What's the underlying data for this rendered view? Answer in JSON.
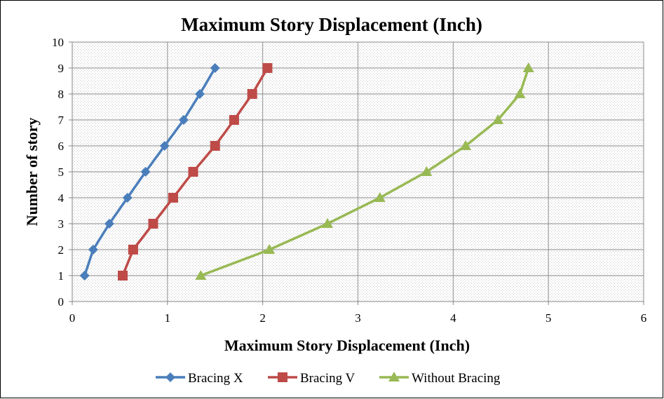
{
  "chart_data": {
    "type": "line",
    "title": "Maximum Story Displacement (Inch)",
    "xlabel": "Maximum Story Displacement (Inch)",
    "ylabel": "Number of story",
    "xlim": [
      0,
      6
    ],
    "ylim": [
      0,
      10
    ],
    "xticks": [
      "0",
      "1",
      "2",
      "3",
      "4",
      "5",
      "6"
    ],
    "yticks": [
      "0",
      "1",
      "2",
      "3",
      "4",
      "5",
      "6",
      "7",
      "8",
      "9",
      "10"
    ],
    "grid": true,
    "legend_position": "bottom",
    "series": [
      {
        "name": "Bracing X",
        "color": "#4a7ebb",
        "marker": "diamond",
        "points": [
          {
            "x": 0.13,
            "y": 1
          },
          {
            "x": 0.22,
            "y": 2
          },
          {
            "x": 0.39,
            "y": 3
          },
          {
            "x": 0.58,
            "y": 4
          },
          {
            "x": 0.77,
            "y": 5
          },
          {
            "x": 0.97,
            "y": 6
          },
          {
            "x": 1.17,
            "y": 7
          },
          {
            "x": 1.34,
            "y": 8
          },
          {
            "x": 1.5,
            "y": 9
          }
        ]
      },
      {
        "name": "Bracing V",
        "color": "#be4b48",
        "marker": "square",
        "points": [
          {
            "x": 0.53,
            "y": 1
          },
          {
            "x": 0.64,
            "y": 2
          },
          {
            "x": 0.85,
            "y": 3
          },
          {
            "x": 1.06,
            "y": 4
          },
          {
            "x": 1.27,
            "y": 5
          },
          {
            "x": 1.5,
            "y": 6
          },
          {
            "x": 1.7,
            "y": 7
          },
          {
            "x": 1.89,
            "y": 8
          },
          {
            "x": 2.05,
            "y": 9
          }
        ]
      },
      {
        "name": "Without Bracing",
        "color": "#98b954",
        "marker": "triangle",
        "points": [
          {
            "x": 1.35,
            "y": 1
          },
          {
            "x": 2.07,
            "y": 2
          },
          {
            "x": 2.68,
            "y": 3
          },
          {
            "x": 3.23,
            "y": 4
          },
          {
            "x": 3.72,
            "y": 5
          },
          {
            "x": 4.13,
            "y": 6
          },
          {
            "x": 4.47,
            "y": 7
          },
          {
            "x": 4.7,
            "y": 8
          },
          {
            "x": 4.79,
            "y": 9
          }
        ]
      }
    ]
  }
}
